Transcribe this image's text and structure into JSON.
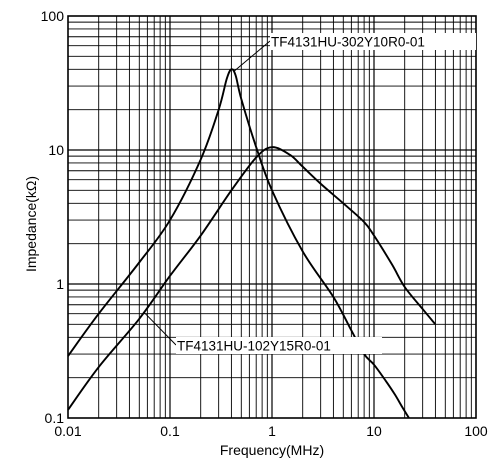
{
  "chart_data": {
    "type": "line",
    "title": "",
    "xlabel": "Frequency(MHz)",
    "ylabel": "Impedance(kΩ)",
    "xscale": "log",
    "yscale": "log",
    "xlim": [
      0.01,
      100
    ],
    "ylim": [
      0.1,
      100
    ],
    "grid": true,
    "x_ticks": [
      {
        "value": 0.01,
        "label": "0.01"
      },
      {
        "value": 0.1,
        "label": "0.1"
      },
      {
        "value": 1,
        "label": "1"
      },
      {
        "value": 10,
        "label": "10"
      },
      {
        "value": 100,
        "label": "100"
      }
    ],
    "y_ticks": [
      {
        "value": 0.1,
        "label": "0.1"
      },
      {
        "value": 1,
        "label": "1"
      },
      {
        "value": 10,
        "label": "10"
      },
      {
        "value": 100,
        "label": "100"
      }
    ],
    "series": [
      {
        "name": "TF4131HU-302Y10R0-01",
        "points": [
          [
            0.01,
            0.29
          ],
          [
            0.02,
            0.6
          ],
          [
            0.05,
            1.45
          ],
          [
            0.1,
            3.0
          ],
          [
            0.2,
            8.5
          ],
          [
            0.3,
            20
          ],
          [
            0.36,
            34
          ],
          [
            0.4,
            40
          ],
          [
            0.44,
            36
          ],
          [
            0.5,
            24
          ],
          [
            0.7,
            10.5
          ],
          [
            1,
            5.0
          ],
          [
            2,
            1.75
          ],
          [
            4,
            0.8
          ],
          [
            6,
            0.45
          ],
          [
            8,
            0.3
          ],
          [
            10,
            0.25
          ],
          [
            13,
            0.19
          ],
          [
            16,
            0.15
          ],
          [
            19,
            0.12
          ],
          [
            22,
            0.1
          ]
        ]
      },
      {
        "name": "TF4131HU-102Y15R0-01",
        "points": [
          [
            0.01,
            0.115
          ],
          [
            0.02,
            0.24
          ],
          [
            0.05,
            0.55
          ],
          [
            0.1,
            1.15
          ],
          [
            0.2,
            2.3
          ],
          [
            0.4,
            5.0
          ],
          [
            0.7,
            8.8
          ],
          [
            1,
            10.5
          ],
          [
            1.5,
            9.2
          ],
          [
            2,
            7.5
          ],
          [
            3,
            5.6
          ],
          [
            5,
            4.0
          ],
          [
            8,
            2.9
          ],
          [
            10,
            2.3
          ],
          [
            15,
            1.4
          ],
          [
            20,
            0.95
          ],
          [
            30,
            0.65
          ],
          [
            40,
            0.5
          ]
        ]
      }
    ],
    "annotations": [
      {
        "text": "TF4131HU-302Y10R0-01",
        "series": 0
      },
      {
        "text": "TF4131HU-102Y15R0-01",
        "series": 1
      }
    ]
  }
}
